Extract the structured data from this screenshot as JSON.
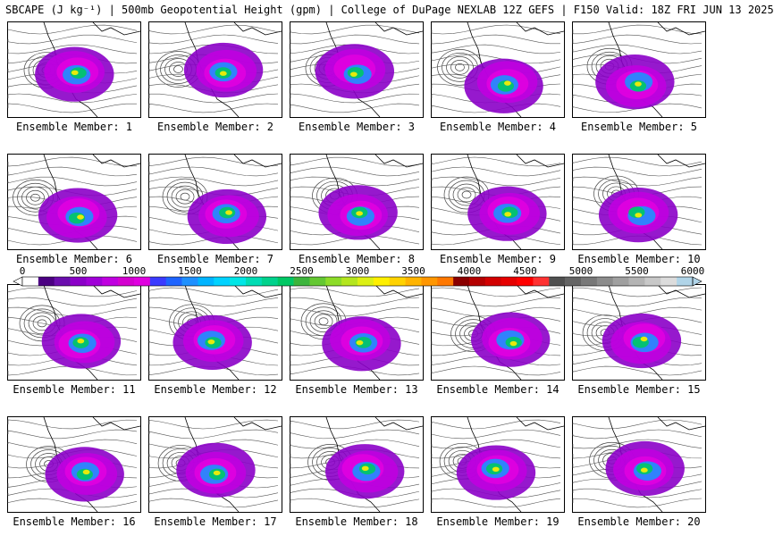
{
  "header": {
    "title": "SBCAPE (J kg⁻¹) | 500mb Geopotential Height (gpm) | College of DuPage NEXLAB 12Z GEFS | F150 Valid: 18Z FRI JUN 13 2025"
  },
  "panels": [
    {
      "label": "Ensemble Member: 1"
    },
    {
      "label": "Ensemble Member: 2"
    },
    {
      "label": "Ensemble Member: 3"
    },
    {
      "label": "Ensemble Member: 4"
    },
    {
      "label": "Ensemble Member: 5"
    },
    {
      "label": "Ensemble Member: 6"
    },
    {
      "label": "Ensemble Member: 7"
    },
    {
      "label": "Ensemble Member: 8"
    },
    {
      "label": "Ensemble Member: 9"
    },
    {
      "label": "Ensemble Member: 10"
    },
    {
      "label": "Ensemble Member: 11"
    },
    {
      "label": "Ensemble Member: 12"
    },
    {
      "label": "Ensemble Member: 13"
    },
    {
      "label": "Ensemble Member: 14"
    },
    {
      "label": "Ensemble Member: 15"
    },
    {
      "label": "Ensemble Member: 16"
    },
    {
      "label": "Ensemble Member: 17"
    },
    {
      "label": "Ensemble Member: 18"
    },
    {
      "label": "Ensemble Member: 19"
    },
    {
      "label": "Ensemble Member: 20"
    }
  ],
  "colorbar": {
    "labels": [
      "0",
      "500",
      "1000",
      "1500",
      "2000",
      "2500",
      "3000",
      "3500",
      "4000",
      "4500",
      "5000",
      "5500",
      "6000"
    ],
    "colors": [
      "#ffffff",
      "#4b0082",
      "#6a0dad",
      "#8b00c8",
      "#a000d8",
      "#c000e0",
      "#d400d0",
      "#e000e0",
      "#3a3aff",
      "#1e64ff",
      "#1e90ff",
      "#00b4ff",
      "#00d2ff",
      "#00e6e6",
      "#00dcb4",
      "#00d28c",
      "#00c864",
      "#3cb43c",
      "#64c832",
      "#8cdc28",
      "#b4e61e",
      "#dcf014",
      "#fff000",
      "#ffd200",
      "#ffb400",
      "#ff9600",
      "#ff7800",
      "#8b0000",
      "#b40000",
      "#d20000",
      "#e60000",
      "#ff0000",
      "#ff3232",
      "#505050",
      "#646464",
      "#787878",
      "#8c8c8c",
      "#a0a0a0",
      "#b4b4b4",
      "#c8c8c8",
      "#dcdcdc",
      "#b0d4e8"
    ]
  }
}
